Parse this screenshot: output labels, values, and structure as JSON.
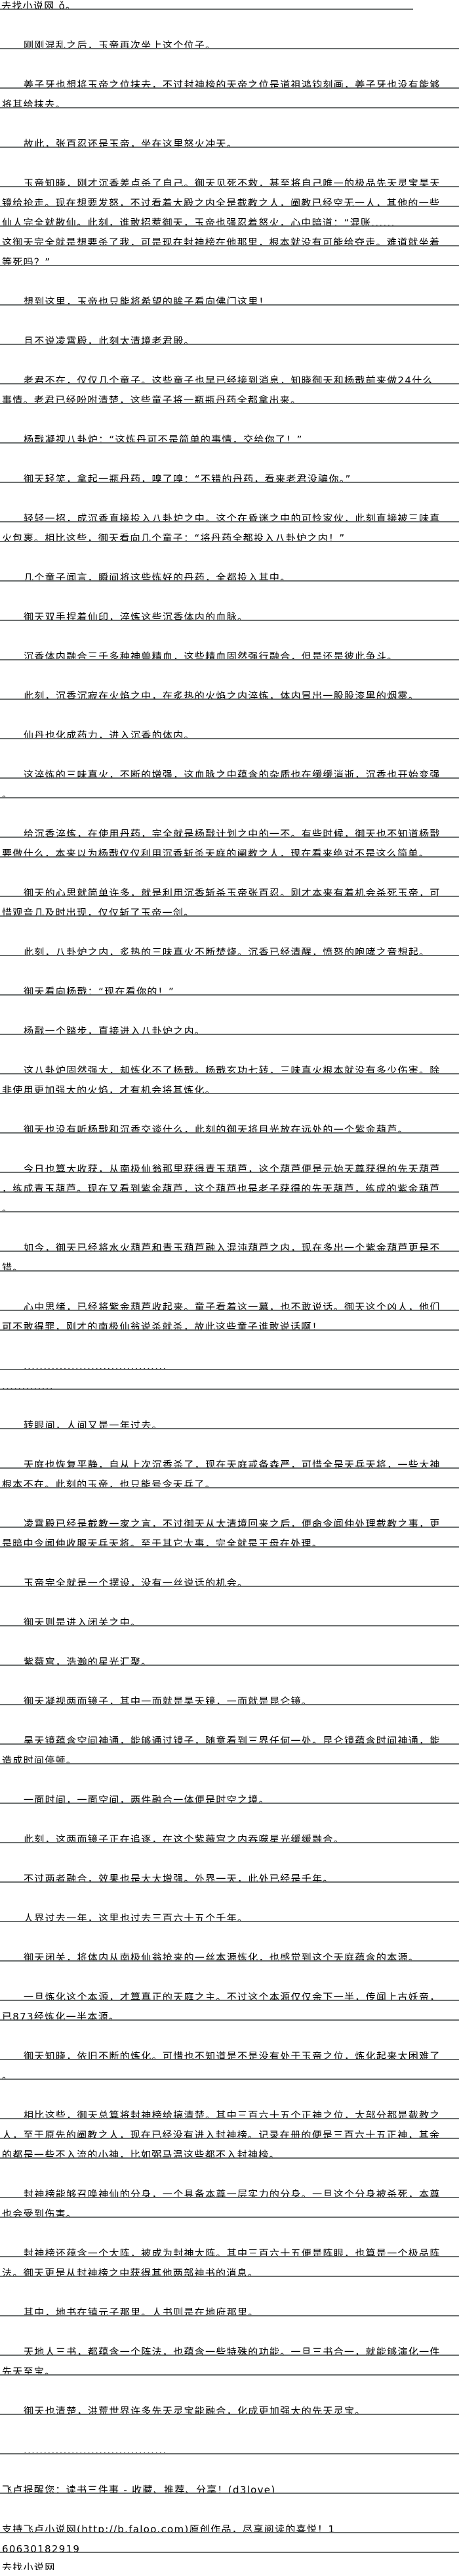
{
  "header": {
    "site_title": "去找小说网 ǒ。"
  },
  "paragraphs": [
    [
      "刚刚混乱之后，玉帝再次坐上这个位子。"
    ],
    [
      "姜子牙也想将玉帝之位抹去，不过封神榜的天帝之位是道祖鸿钧刻画，姜子牙也没有能够",
      "将其给抹去。"
    ],
    [
      "故此，张百忍还是玉帝，坐在这里怒火冲天。"
    ],
    [
      "玉帝知晓，刚才沉香差点杀了自己。御天见死不救，甚至将自己唯一的极品先天灵宝昊天",
      "镜给抢走。现在想要发怒，不过看着大殿之内全是截教之人，阐教已经空无一人，其他的一些",
      "仙人完全就散仙。此刻，谁敢招惹御天，玉帝也强忍着怒火，心中暗道：“混账......",
      "这御天完全就是想要杀了我，可是现在封神榜在他那里，根本就没有可能给夺走。难道就坐着",
      "等死吗？”"
    ],
    [
      "想到这里，玉帝也只能将希望的眸子看向佛门这里！"
    ],
    [
      "且不说凌霄殿，此刻太清境老君殿。"
    ],
    [
      "老君不在，仅仅几个童子。这些童子也早已经接到消息，知晓御天和杨戬前来做24什么",
      "事情。老君已经吩咐清楚，这些童子将一瓶瓶丹药全都拿出来。"
    ],
    [
      "杨戬凝视八卦炉：“这炼丹可不是简单的事情，交给你了！”"
    ],
    [
      "御天轻笑，拿起一瓶丹药，嗅了嗅：“不错的丹药，看来老君没骗你。”"
    ],
    [
      "轻轻一招，成沉香直接投入八卦炉之中。这个在昏迷之中的可怜家伙，此刻直接被三味真",
      "火包裹。相比这些，御天看向几个童子：“将丹药全都投入八卦炉之内！”"
    ],
    [
      "几个童子闻言，瞬间将这些炼好的丹药，全都投入其中。"
    ],
    [
      "御天双手捏着仙印，淬炼这些沉香体内的血脉。"
    ],
    [
      "沉香体内融合三千多种神兽精血，这些精血固然强行融合，但是还是彼此争斗。"
    ],
    [
      "此刻，沉香沉寂在火焰之中，在炙热的火焰之内淬炼，体内冒出一股股漆黑的烟雾。"
    ],
    [
      "仙丹也化成药力，进入沉香的体内。"
    ],
    [
      "这淬炼的三味真火，不断的增强，这血脉之中蕴含的杂质也在缓缓消逝，沉香也开始变强",
      "。"
    ],
    [
      "给沉香淬炼，在使用丹药，完全就是杨戬计划之中的一不。有些时候，御天也不知道杨戬",
      "要做什么，本来以为杨戬仅仅利用沉香斩杀天庭的阐教之人，现在看来绝对不是这么简单。"
    ],
    [
      "御天的心思就简单许多，就是利用沉香斩杀玉帝张百忍。刚才本来有着机会杀死玉帝，可",
      "惜观音几及时出现，仅仅斩了玉帝一剑。"
    ],
    [
      "此刻，八卦炉之内，炙热的三味真火不断焚烧。沉香已经清醒，愤怒的咆哮之音想起。"
    ],
    [
      "御天看向杨戬：“现在看你的！”"
    ],
    [
      "杨戬一个踏步，直接进入八卦炉之内。"
    ],
    [
      "这八卦炉固然强大，却炼化不了杨戬。杨戬玄功七转，三味真火根本就没有多少伤害。除",
      "非使用更加强大的火焰，才有机会将其炼化。"
    ],
    [
      "御天也没有听杨戬和沉香交谈什么，此刻的御天将目光放在远处的一个紫金葫芦。"
    ],
    [
      "今日也算大收获，从南极仙翁那里获得青玉葫芦，这个葫芦便是元始天尊获得的先天葫芦",
      "，练成青玉葫芦。现在又看到紫金葫芦，这个葫芦也是老子获得的先天葫芦，练成的紫金葫芦",
      "。"
    ],
    [
      "如今，御天已经将水火葫芦和青玉葫芦融入混沌葫芦之内，现在多出一个紫金葫芦更是不",
      "错。"
    ],
    [
      "心中思绪，已经将紫金葫芦收起来。童子看着这一幕，也不敢说话。御天这个凶人，他们",
      "可不敢得罪，刚才的南极仙翁说杀就杀，故此这些童子谁敢说话啊！"
    ],
    [
      "....................................",
      "............."
    ],
    [
      "转眼间，人间又是一年过去。"
    ],
    [
      "天庭也恢复平静，自从上次沉香杀了，现在天庭戒备森严，可惜全是天兵天将，一些大神",
      "根本不在。此刻的玉帝，也只能号令天兵了。"
    ],
    [
      "凌霄殿已经是截教一家之言，不过御天从太清境回来之后，便命令闻仲处理截教之事，更",
      "是暗中令闻仲收服天兵天将。至于其它大事，完全就是王母在处理。"
    ],
    [
      "玉帝完全就是一个摆设，没有一丝说话的机会。"
    ],
    [
      "御天则是进入闭关之中。"
    ],
    [
      "紫薇宫，浩瀚的星光汇聚。"
    ],
    [
      "御天凝视两面镜子，其中一面就是昊天镜，一面就是昆仑镜。"
    ],
    [
      "昊天镜蕴含空间神通，能够通过镜子，随意看到三界任何一处。昆仑镜蕴含时间神通，能",
      "造成时间停顿。"
    ],
    [
      "一面时间，一面空间，两件融合一体便是时空之境。"
    ],
    [
      "此刻，这两面镜子正在追逐，在这个紫薇宫之内吞噬星光缓缓融合。"
    ],
    [
      "不过两者融合，效果也是大大增强。外界一天，此处已经是千年。"
    ],
    [
      "人界过去一年，这里也过去三百六十五个千年。"
    ],
    [
      "御天闭关，将体内从南极仙翁抢来的一丝本源炼化，也感觉到这个天庭蕴含的本源。"
    ],
    [
      "一旦炼化这个本源，才算真正的天庭之主。不过这个本源仅仅余下一半，传闻上古妖帝，",
      "已873经炼化一半本源。"
    ],
    [
      "御天知晓，依旧不断的炼化。可惜也不知道是不是没有处于玉帝之位，炼化起来太困难了",
      "。"
    ],
    [
      "相比这些，御天总算将封神榜给搞清楚。其中三百六十五个正神之位，大部分都是截教之",
      "人，至于原先的阐教之人，现在已经没有进入封神榜。记录在册的便是三百六十五正神，其余",
      "的都是一些不入流的小神，比如弼马温这些都不入封神榜。"
    ],
    [
      "封神榜能够召唤神仙的分身，一个具备本尊一层实力的分身。一旦这个分身被杀死，本尊",
      "也会受到伤害。"
    ],
    [
      "封神榜还蕴含一个大阵，被成为封神大阵。其中三百六十五便是阵眼，也算是一个极品阵",
      "法。御天更是从封神榜之中获得其他两部神书的消息。"
    ],
    [
      "其中，地书在镇元子那里。人书则是在地府那里。"
    ],
    [
      "天地人三书，都蕴含一个阵法，也蕴含一些特殊的功能。一旦三书合一，就能够演化一件",
      "先天至宝。"
    ],
    [
      "御天也清楚，洪荒世界许多先天灵宝能融合，化成更加强大的先天灵宝。"
    ],
    [
      "...................................."
    ]
  ],
  "footer": {
    "reminder": "飞卢提醒您：读书三件事 - 收藏、推荐、分享！(d3love)",
    "support_lines": [
      "支持飞卢小说网(http://b.faloo.com)原创作品，尽享阅读的喜悦！1",
      "60630182919"
    ],
    "site_name": "去找小说网"
  },
  "colors": {
    "rule": "#6b6f6f",
    "text": "#000000",
    "background": "#ffffff"
  }
}
